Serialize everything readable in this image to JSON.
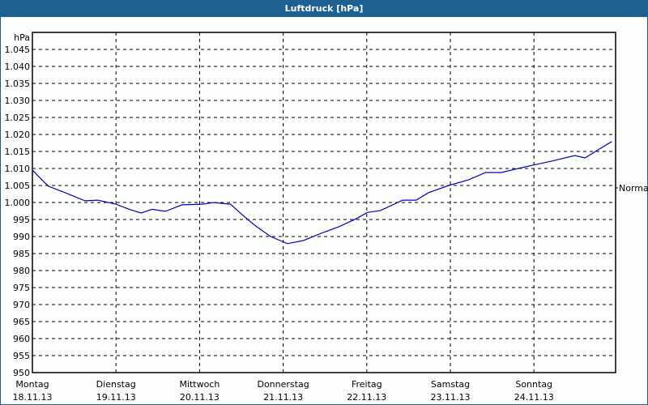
{
  "window": {
    "title": "Luftdruck [hPa]"
  },
  "chart_data": {
    "type": "line",
    "title": "Luftdruck [hPa]",
    "xlabel": "",
    "ylabel": "hPa",
    "ylim": [
      950,
      1050
    ],
    "y_ticks": [
      "1.045",
      "1.040",
      "1.035",
      "1.030",
      "1.025",
      "1.020",
      "1.015",
      "1.010",
      "1.005",
      "1.000",
      "995",
      "990",
      "985",
      "980",
      "975",
      "970",
      "965",
      "960",
      "955",
      "950"
    ],
    "x_ticks": [
      {
        "day": "Montag",
        "date": "18.11.13"
      },
      {
        "day": "Dienstag",
        "date": "19.11.13"
      },
      {
        "day": "Mittwoch",
        "date": "20.11.13"
      },
      {
        "day": "Donnerstag",
        "date": "21.11.13"
      },
      {
        "day": "Freitag",
        "date": "22.11.13"
      },
      {
        "day": "Samstag",
        "date": "23.11.13"
      },
      {
        "day": "Sonntag",
        "date": "24.11.13"
      }
    ],
    "grid": true,
    "reference_line": {
      "label": "Normal",
      "value": 1004.3
    },
    "series": [
      {
        "name": "Luftdruck",
        "color": "#0000c0",
        "x_days": [
          0.0,
          0.19,
          0.39,
          0.63,
          0.78,
          1.0,
          1.16,
          1.3,
          1.43,
          1.59,
          1.79,
          2.03,
          2.17,
          2.37,
          2.51,
          2.66,
          2.85,
          3.05,
          3.24,
          3.48,
          3.67,
          3.87,
          4.01,
          4.16,
          4.43,
          4.59,
          4.74,
          4.98,
          5.22,
          5.42,
          5.61,
          5.81,
          5.99,
          6.2,
          6.49,
          6.61,
          6.78,
          6.93
        ],
        "values": [
          1009.5,
          1004.8,
          1002.9,
          1000.5,
          1000.7,
          999.5,
          998.0,
          996.9,
          998.0,
          997.4,
          999.3,
          999.5,
          1000.0,
          999.5,
          996.4,
          993.3,
          990.0,
          987.9,
          988.8,
          991.2,
          992.9,
          995.2,
          997.1,
          997.6,
          1000.7,
          1000.7,
          1002.9,
          1005.0,
          1006.7,
          1008.8,
          1008.8,
          1010.0,
          1011.0,
          1012.1,
          1013.8,
          1013.1,
          1015.7,
          1017.9
        ]
      }
    ]
  }
}
